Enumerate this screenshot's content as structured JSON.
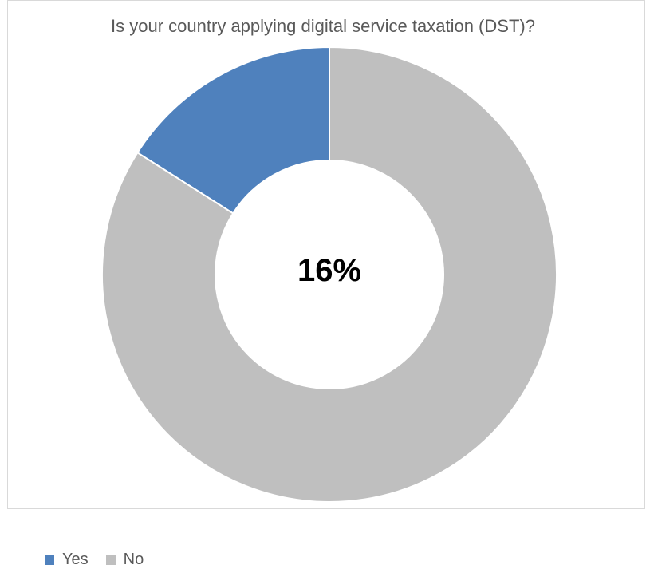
{
  "chart_data": {
    "type": "pie",
    "subtype": "donut",
    "title": "Is your country applying digital service taxation (DST)?",
    "categories": [
      "Yes",
      "No"
    ],
    "values": [
      16,
      84
    ],
    "colors": [
      "#4f81bd",
      "#bfbfbf"
    ],
    "center_label": "16%",
    "legend_position": "bottom-left",
    "start_angle_deg": 0,
    "direction": "counterclockwise"
  }
}
